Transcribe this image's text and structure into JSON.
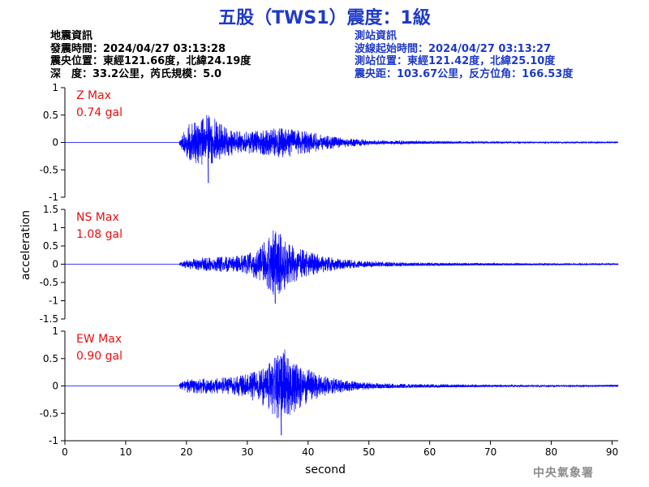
{
  "title": "五股（TWS1）震度：1級",
  "earthquake_info": {
    "heading": "地震資訊",
    "origin_time": "發震時間：2024/04/27 03:13:28",
    "epicenter": "震央位置：東經121.66度，北緯24.19度",
    "depth_magnitude": "深　度：33.2公里，芮氏規模：5.0"
  },
  "station_info": {
    "heading": "測站資訊",
    "wave_start": "波線起始時間：2024/04/27 03:13:27",
    "location": "測站位置：東經121.42度，北緯25.10度",
    "distance": "震央距：103.67公里，反方位角：166.53度"
  },
  "credit": "中央氣象署",
  "colors": {
    "title": "#1f3ac8",
    "station_info": "#1f3ac8",
    "trace": "#0000ff",
    "max_label": "#e81010",
    "credit": "#8c8c8c"
  },
  "chart_data": {
    "type": "line",
    "xlabel": "second",
    "ylabel": "acceleration",
    "xlim": [
      0,
      91
    ],
    "xticks": [
      "0",
      "10",
      "20",
      "30",
      "40",
      "50",
      "60",
      "70",
      "80",
      "90"
    ],
    "grid": false,
    "panels": [
      {
        "component": "Z",
        "max_label": "Z Max",
        "max_value": "0.74 gal",
        "ylim": [
          -1,
          1
        ],
        "yticks": [
          "1",
          "0.5",
          "0",
          "-0.5",
          "-1"
        ],
        "onset_s": 18.8,
        "peak_time_s": 23.5,
        "envelope": [
          [
            18.8,
            0.05
          ],
          [
            19.8,
            0.25
          ],
          [
            20.5,
            0.35
          ],
          [
            21.5,
            0.4
          ],
          [
            22.5,
            0.45
          ],
          [
            23.5,
            0.55
          ],
          [
            24.5,
            0.45
          ],
          [
            25.5,
            0.35
          ],
          [
            27,
            0.25
          ],
          [
            29,
            0.2
          ],
          [
            31,
            0.22
          ],
          [
            33,
            0.24
          ],
          [
            35,
            0.28
          ],
          [
            37,
            0.26
          ],
          [
            40,
            0.2
          ],
          [
            43,
            0.13
          ],
          [
            46,
            0.09
          ],
          [
            50,
            0.05
          ],
          [
            55,
            0.035
          ],
          [
            60,
            0.025
          ],
          [
            70,
            0.018
          ],
          [
            80,
            0.014
          ],
          [
            91,
            0.012
          ]
        ]
      },
      {
        "component": "NS",
        "max_label": "NS Max",
        "max_value": "1.08 gal",
        "ylim": [
          -1.5,
          1.5
        ],
        "yticks": [
          "1.5",
          "1",
          "0.5",
          "0",
          "-0.5",
          "-1",
          "-1.5"
        ],
        "onset_s": 18.8,
        "peak_time_s": 34.5,
        "envelope": [
          [
            18.8,
            0.04
          ],
          [
            20,
            0.12
          ],
          [
            22,
            0.18
          ],
          [
            25,
            0.2
          ],
          [
            28,
            0.22
          ],
          [
            30,
            0.28
          ],
          [
            32,
            0.45
          ],
          [
            33.5,
            0.75
          ],
          [
            34.5,
            1.0
          ],
          [
            35.5,
            0.85
          ],
          [
            37,
            0.55
          ],
          [
            39,
            0.4
          ],
          [
            41,
            0.3
          ],
          [
            44,
            0.18
          ],
          [
            48,
            0.1
          ],
          [
            52,
            0.07
          ],
          [
            56,
            0.05
          ],
          [
            60,
            0.04
          ],
          [
            70,
            0.03
          ],
          [
            80,
            0.025
          ],
          [
            91,
            0.02
          ]
        ]
      },
      {
        "component": "EW",
        "max_label": "EW Max",
        "max_value": "0.90 gal",
        "ylim": [
          -1,
          1
        ],
        "yticks": [
          "1",
          "0.5",
          "0",
          "-0.5",
          "-1"
        ],
        "onset_s": 18.8,
        "peak_time_s": 35.5,
        "envelope": [
          [
            18.8,
            0.05
          ],
          [
            20,
            0.12
          ],
          [
            22,
            0.14
          ],
          [
            25,
            0.15
          ],
          [
            28,
            0.17
          ],
          [
            30,
            0.22
          ],
          [
            32,
            0.32
          ],
          [
            33.5,
            0.45
          ],
          [
            35,
            0.6
          ],
          [
            35.5,
            0.8
          ],
          [
            36.5,
            0.6
          ],
          [
            38,
            0.45
          ],
          [
            40,
            0.32
          ],
          [
            42,
            0.2
          ],
          [
            45,
            0.13
          ],
          [
            48,
            0.08
          ],
          [
            52,
            0.05
          ],
          [
            56,
            0.035
          ],
          [
            60,
            0.03
          ],
          [
            70,
            0.022
          ],
          [
            80,
            0.018
          ],
          [
            91,
            0.015
          ]
        ]
      }
    ]
  }
}
